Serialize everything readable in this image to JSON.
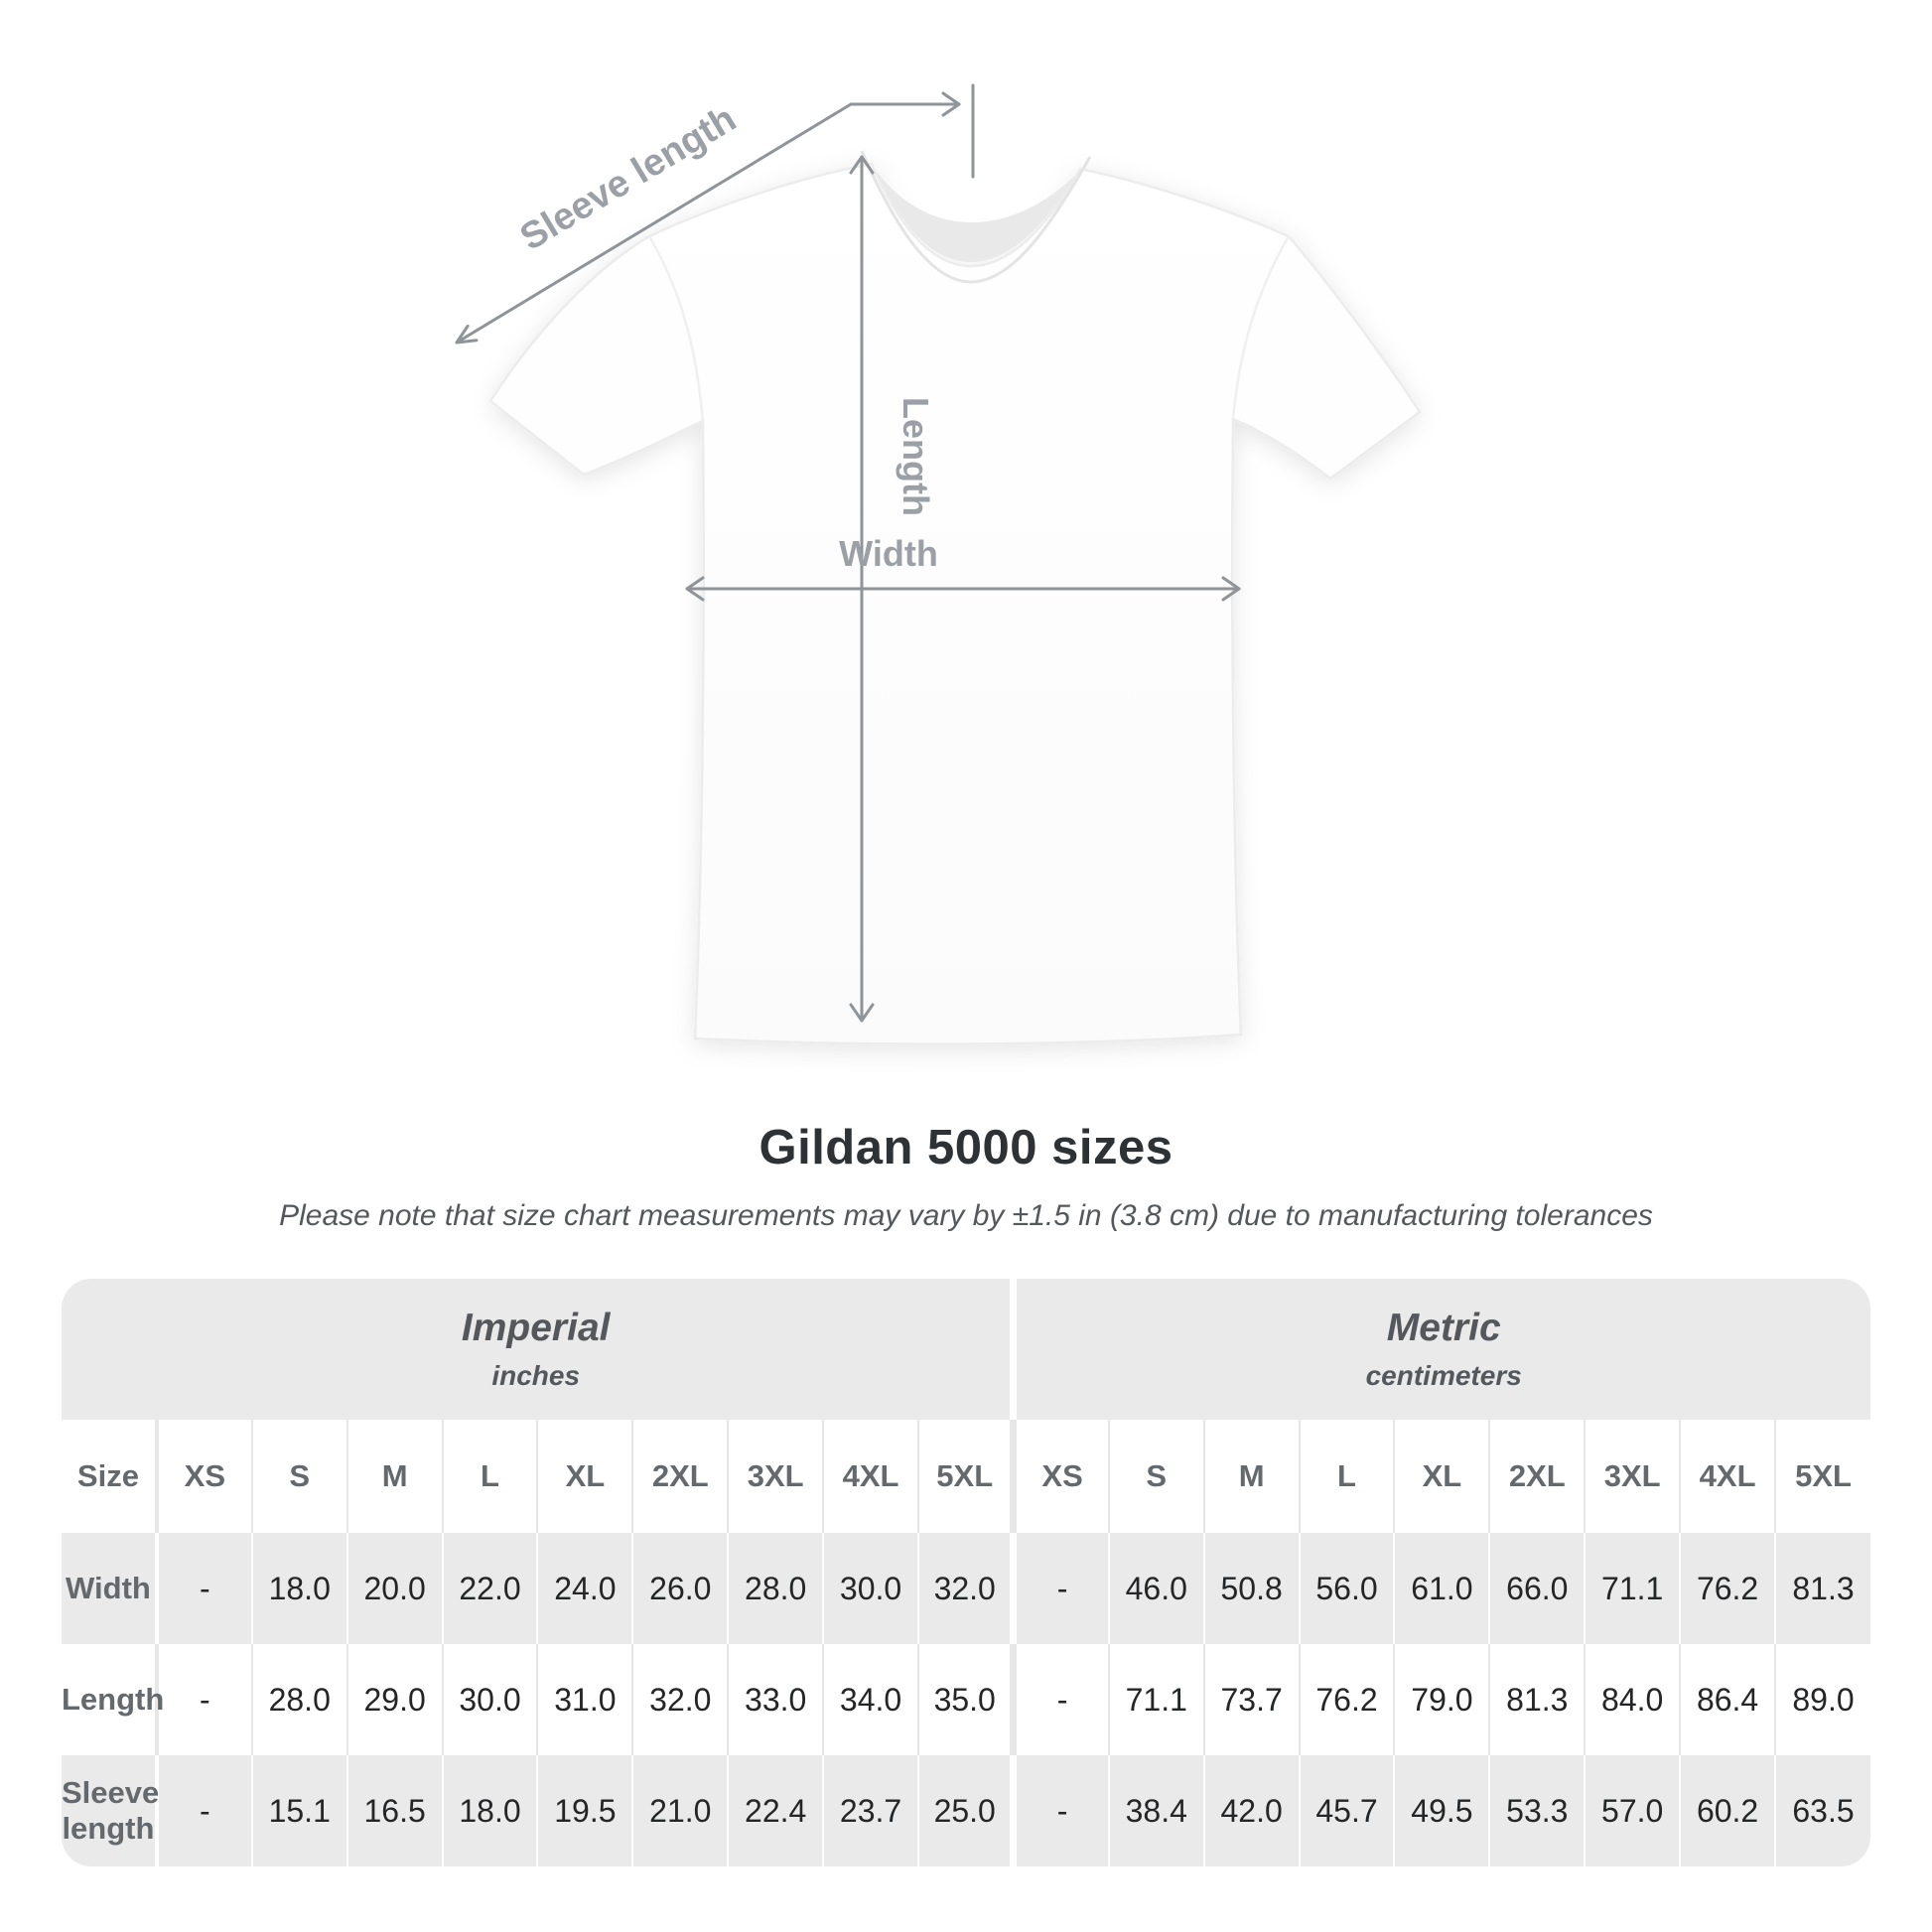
{
  "page": {
    "title": "Gildan 5000 sizes",
    "note": "Please note that size chart measurements may vary by ±1.5 in (3.8 cm) due to manufacturing tolerances"
  },
  "diagram": {
    "labels": {
      "sleeve_length": "Sleeve length",
      "length": "Length",
      "width": "Width"
    },
    "arrow_color": "#8f9499",
    "label_color": "#9aa0a6",
    "shirt_color": "#ffffff"
  },
  "chart_data": {
    "type": "table",
    "title": "Gildan 5000 sizes",
    "note": "Please note that size chart measurements may vary by ±1.5 in (3.8 cm) due to manufacturing tolerances",
    "unit_groups": [
      {
        "label": "Imperial",
        "sublabel": "inches"
      },
      {
        "label": "Metric",
        "sublabel": "centimeters"
      }
    ],
    "size_header": "Size",
    "sizes": [
      "XS",
      "S",
      "M",
      "L",
      "XL",
      "2XL",
      "3XL",
      "4XL",
      "5XL"
    ],
    "rows": [
      {
        "label": "Width",
        "imperial": [
          "-",
          "18.0",
          "20.0",
          "22.0",
          "24.0",
          "26.0",
          "28.0",
          "30.0",
          "32.0"
        ],
        "metric": [
          "-",
          "46.0",
          "50.8",
          "56.0",
          "61.0",
          "66.0",
          "71.1",
          "76.2",
          "81.3"
        ]
      },
      {
        "label": "Length",
        "imperial": [
          "-",
          "28.0",
          "29.0",
          "30.0",
          "31.0",
          "32.0",
          "33.0",
          "34.0",
          "35.0"
        ],
        "metric": [
          "-",
          "71.1",
          "73.7",
          "76.2",
          "79.0",
          "81.3",
          "84.0",
          "86.4",
          "89.0"
        ]
      },
      {
        "label": "Sleeve length",
        "imperial": [
          "-",
          "15.1",
          "16.5",
          "18.0",
          "19.5",
          "21.0",
          "22.4",
          "23.7",
          "25.0"
        ],
        "metric": [
          "-",
          "38.4",
          "42.0",
          "45.7",
          "49.5",
          "53.3",
          "57.0",
          "60.2",
          "63.5"
        ]
      }
    ],
    "colors": {
      "band_bg": "#eaeaea",
      "row_alt_bg": "#eaeaea",
      "header_text": "#64696e",
      "value_text": "#232527"
    }
  }
}
